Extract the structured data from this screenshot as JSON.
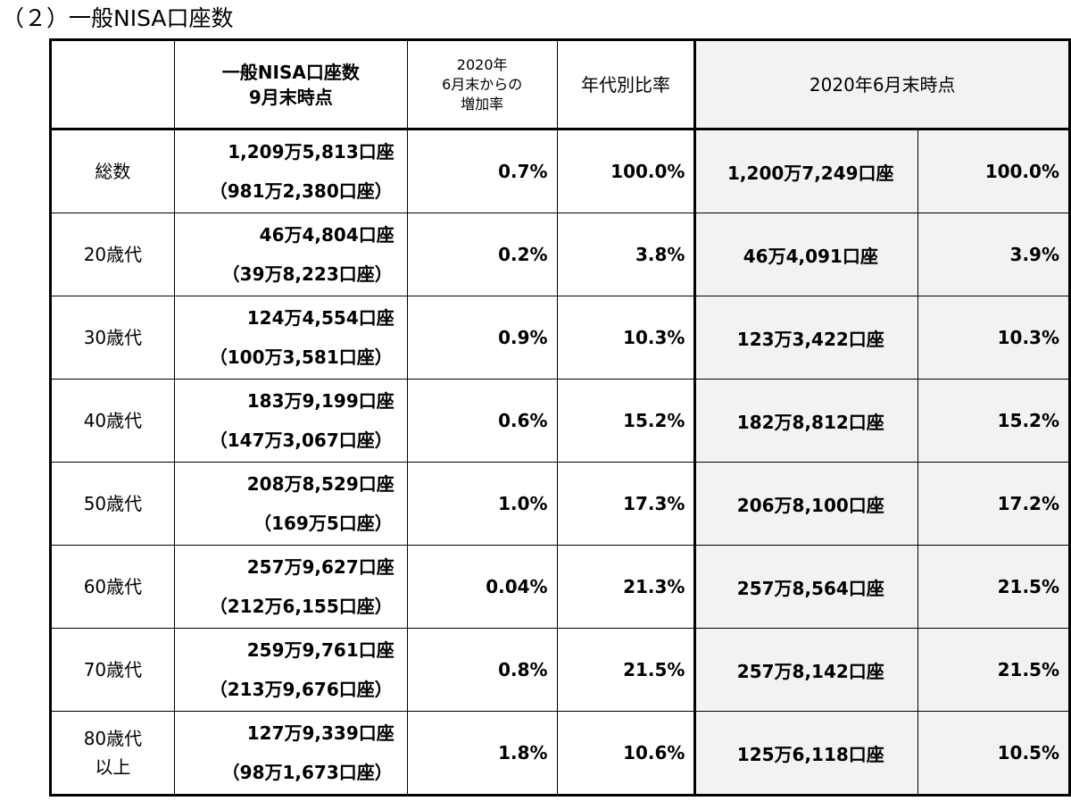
{
  "title": "（２）一般NISA口座数",
  "header": {
    "col1": "",
    "col2_line1": "一般NISA口座数",
    "col2_line2": "9月末時点",
    "col3_line1": "2020年",
    "col3_line2": "6月末からの",
    "col3_line3": "増加率",
    "col4": "年代別比率",
    "col5": "2020年6月末時点"
  },
  "rows": [
    {
      "label": "総数",
      "label2": "",
      "accounts": "1,209万5,813口座",
      "accounts_prev": "（981万2,380口座）",
      "growth": "0.7%",
      "ratio": "100.0%",
      "jun_accounts": "1,200万7,249口座",
      "jun_ratio": "100.0%"
    },
    {
      "label": "20歳代",
      "label2": "",
      "accounts": "46万4,804口座",
      "accounts_prev": "（39万8,223口座）",
      "growth": "0.2%",
      "ratio": "3.8%",
      "jun_accounts": "46万4,091口座",
      "jun_ratio": "3.9%"
    },
    {
      "label": "30歳代",
      "label2": "",
      "accounts": "124万4,554口座",
      "accounts_prev": "（100万3,581口座）",
      "growth": "0.9%",
      "ratio": "10.3%",
      "jun_accounts": "123万3,422口座",
      "jun_ratio": "10.3%"
    },
    {
      "label": "40歳代",
      "label2": "",
      "accounts": "183万9,199口座",
      "accounts_prev": "（147万3,067口座）",
      "growth": "0.6%",
      "ratio": "15.2%",
      "jun_accounts": "182万8,812口座",
      "jun_ratio": "15.2%"
    },
    {
      "label": "50歳代",
      "label2": "",
      "accounts": "208万8,529口座",
      "accounts_prev": "（169万5口座）",
      "growth": "1.0%",
      "ratio": "17.3%",
      "jun_accounts": "206万8,100口座",
      "jun_ratio": "17.2%"
    },
    {
      "label": "60歳代",
      "label2": "",
      "accounts": "257万9,627口座",
      "accounts_prev": "（212万6,155口座）",
      "growth": "0.04%",
      "ratio": "21.3%",
      "jun_accounts": "257万8,564口座",
      "jun_ratio": "21.5%"
    },
    {
      "label": "70歳代",
      "label2": "",
      "accounts": "259万9,761口座",
      "accounts_prev": "（213万9,676口座）",
      "growth": "0.8%",
      "ratio": "21.5%",
      "jun_accounts": "257万8,142口座",
      "jun_ratio": "21.5%"
    },
    {
      "label": "80歳代",
      "label2": "以上",
      "accounts": "127万9,339口座",
      "accounts_prev": "（98万1,673口座）",
      "growth": "1.8%",
      "ratio": "10.6%",
      "jun_accounts": "125万6,118口座",
      "jun_ratio": "10.5%"
    }
  ]
}
